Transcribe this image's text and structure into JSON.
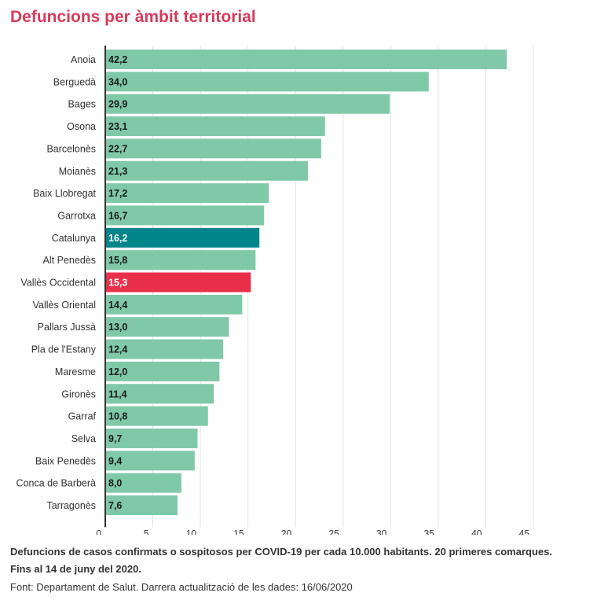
{
  "chart_data": {
    "type": "bar",
    "orientation": "horizontal",
    "title": "Defuncions per àmbit territorial",
    "categories": [
      "Anoia",
      "Berguedà",
      "Bages",
      "Osona",
      "Barcelonès",
      "Moianès",
      "Baix Llobregat",
      "Garrotxa",
      "Catalunya",
      "Alt Penedès",
      "Vallès Occidental",
      "Vallès Oriental",
      "Pallars Jussà",
      "Pla de l'Estany",
      "Maresme",
      "Gironès",
      "Garraf",
      "Selva",
      "Baix Penedès",
      "Conca de Barberà",
      "Tarragonès"
    ],
    "values": [
      42.2,
      34.0,
      29.9,
      23.1,
      22.7,
      21.3,
      17.2,
      16.7,
      16.2,
      15.8,
      15.3,
      14.4,
      13.0,
      12.4,
      12.0,
      11.4,
      10.8,
      9.7,
      9.4,
      8.0,
      7.6
    ],
    "value_labels": [
      "42,2",
      "34,0",
      "29,9",
      "23,1",
      "22,7",
      "21,3",
      "17,2",
      "16,7",
      "16,2",
      "15,8",
      "15,3",
      "14,4",
      "13,0",
      "12,4",
      "12,0",
      "11,4",
      "10,8",
      "9,7",
      "9,4",
      "8,0",
      "7,6"
    ],
    "xlim": [
      0,
      45
    ],
    "xticks": [
      0,
      5,
      10,
      15,
      20,
      25,
      30,
      35,
      40,
      45
    ],
    "grid": true,
    "colors": {
      "default": "#80c9a8",
      "highlight_catalunya": "#00858a",
      "highlight_valles_occidental": "#e8304a",
      "label_dark": "#1a1a1a",
      "label_light": "#ffffff"
    },
    "highlights": {
      "Catalunya": "highlight_catalunya",
      "Vallès Occidental": "highlight_valles_occidental"
    }
  },
  "caption": {
    "line1": "Defuncions de casos confirmats o sospitosos per COVID-19 per cada 10.000 habitants. 20 primeres comarques.",
    "line2": "Fins al 14 de juny del 2020.",
    "source": "Font: Departament de Salut. Darrera actualització de les dades: 16/06/2020"
  }
}
